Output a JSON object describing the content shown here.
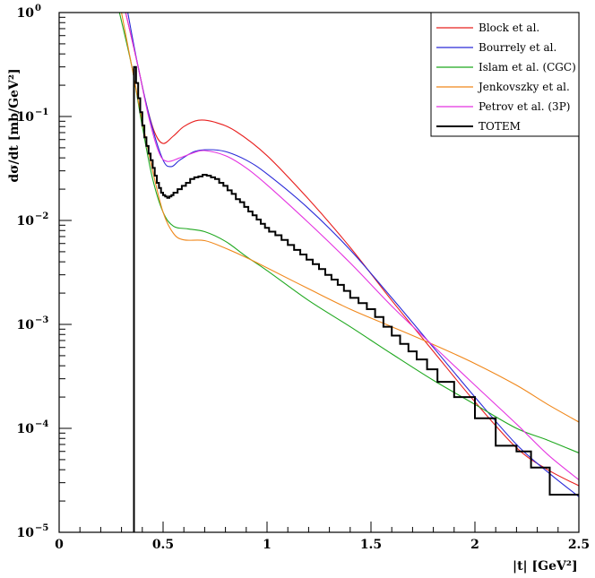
{
  "chart_data": {
    "type": "line",
    "xlabel": "|t|   [GeV²]",
    "ylabel": "dσ/dt   [mb/GeV²]",
    "xlim": [
      0,
      2.5
    ],
    "ylim": [
      1e-05,
      1
    ],
    "yscale": "log",
    "x_ticks": [
      0,
      0.5,
      1,
      1.5,
      2,
      2.5
    ],
    "x_tick_labels": [
      "0",
      "0.5",
      "1",
      "1.5",
      "2",
      "2.5"
    ],
    "y_tick_labels": [
      {
        "base": "10",
        "exp": "−5",
        "value": 1e-05
      },
      {
        "base": "10",
        "exp": "−4",
        "value": 0.0001
      },
      {
        "base": "10",
        "exp": "−3",
        "value": 0.001
      },
      {
        "base": "10",
        "exp": "−2",
        "value": 0.01
      },
      {
        "base": "10",
        "exp": "−1",
        "value": 0.1
      },
      {
        "base": "10",
        "exp": "0",
        "value": 1
      }
    ],
    "legend_position": "top-right",
    "series": [
      {
        "name": "Block et al.",
        "color": "#e8201f",
        "points": [
          [
            0.32,
            1.0
          ],
          [
            0.38,
            0.3
          ],
          [
            0.42,
            0.13
          ],
          [
            0.46,
            0.07
          ],
          [
            0.5,
            0.055
          ],
          [
            0.55,
            0.065
          ],
          [
            0.6,
            0.08
          ],
          [
            0.67,
            0.092
          ],
          [
            0.75,
            0.088
          ],
          [
            0.85,
            0.072
          ],
          [
            1.0,
            0.042
          ],
          [
            1.2,
            0.016
          ],
          [
            1.4,
            0.0055
          ],
          [
            1.6,
            0.0017
          ],
          [
            1.8,
            0.00055
          ],
          [
            2.0,
            0.00018
          ],
          [
            2.2,
            6.5e-05
          ],
          [
            2.35,
            4e-05
          ],
          [
            2.5,
            2.8e-05
          ]
        ]
      },
      {
        "name": "Bourrely et al.",
        "color": "#2a2ad8",
        "points": [
          [
            0.33,
            1.0
          ],
          [
            0.38,
            0.3
          ],
          [
            0.44,
            0.09
          ],
          [
            0.5,
            0.038
          ],
          [
            0.54,
            0.033
          ],
          [
            0.58,
            0.038
          ],
          [
            0.65,
            0.046
          ],
          [
            0.72,
            0.048
          ],
          [
            0.8,
            0.046
          ],
          [
            0.9,
            0.038
          ],
          [
            1.0,
            0.028
          ],
          [
            1.2,
            0.013
          ],
          [
            1.4,
            0.0052
          ],
          [
            1.6,
            0.0018
          ],
          [
            1.8,
            0.0006
          ],
          [
            2.0,
            0.0002
          ],
          [
            2.2,
            7e-05
          ],
          [
            2.35,
            3.8e-05
          ],
          [
            2.5,
            2.2e-05
          ]
        ]
      },
      {
        "name": "Islam et al. (CGC)",
        "color": "#1fa81f",
        "points": [
          [
            0.29,
            1.0
          ],
          [
            0.35,
            0.3
          ],
          [
            0.4,
            0.08
          ],
          [
            0.45,
            0.025
          ],
          [
            0.5,
            0.012
          ],
          [
            0.55,
            0.0088
          ],
          [
            0.62,
            0.0083
          ],
          [
            0.7,
            0.0078
          ],
          [
            0.8,
            0.0063
          ],
          [
            0.9,
            0.0045
          ],
          [
            1.0,
            0.0033
          ],
          [
            1.2,
            0.0017
          ],
          [
            1.4,
            0.00095
          ],
          [
            1.6,
            0.00052
          ],
          [
            1.8,
            0.00029
          ],
          [
            2.0,
            0.00017
          ],
          [
            2.2,
            0.0001
          ],
          [
            2.35,
            7.7e-05
          ],
          [
            2.5,
            5.8e-05
          ]
        ]
      },
      {
        "name": "Jenkovszky et al.",
        "color": "#f0871a",
        "points": [
          [
            0.3,
            1.0
          ],
          [
            0.35,
            0.3
          ],
          [
            0.4,
            0.09
          ],
          [
            0.45,
            0.03
          ],
          [
            0.5,
            0.012
          ],
          [
            0.55,
            0.0075
          ],
          [
            0.6,
            0.0065
          ],
          [
            0.7,
            0.0064
          ],
          [
            0.8,
            0.0054
          ],
          [
            0.9,
            0.0044
          ],
          [
            1.0,
            0.0035
          ],
          [
            1.2,
            0.0022
          ],
          [
            1.4,
            0.0014
          ],
          [
            1.6,
            0.00095
          ],
          [
            1.8,
            0.00064
          ],
          [
            2.0,
            0.00042
          ],
          [
            2.2,
            0.00026
          ],
          [
            2.35,
            0.00017
          ],
          [
            2.5,
            0.000115
          ]
        ]
      },
      {
        "name": "Petrov et al. (3P)",
        "color": "#e433e0",
        "points": [
          [
            0.32,
            1.0
          ],
          [
            0.38,
            0.3
          ],
          [
            0.43,
            0.1
          ],
          [
            0.48,
            0.045
          ],
          [
            0.52,
            0.037
          ],
          [
            0.58,
            0.04
          ],
          [
            0.65,
            0.045
          ],
          [
            0.7,
            0.047
          ],
          [
            0.8,
            0.042
          ],
          [
            0.9,
            0.032
          ],
          [
            1.0,
            0.022
          ],
          [
            1.2,
            0.0095
          ],
          [
            1.4,
            0.0039
          ],
          [
            1.6,
            0.0015
          ],
          [
            1.8,
            0.00062
          ],
          [
            2.0,
            0.00026
          ],
          [
            2.2,
            0.00011
          ],
          [
            2.35,
            5.6e-05
          ],
          [
            2.5,
            3.2e-05
          ]
        ]
      }
    ],
    "totem": {
      "name": "TOTEM",
      "color": "#000000",
      "vertical_at": 0.36,
      "steps": [
        [
          0.36,
          0.3
        ],
        [
          0.37,
          0.21
        ],
        [
          0.38,
          0.15
        ],
        [
          0.39,
          0.11
        ],
        [
          0.4,
          0.082
        ],
        [
          0.41,
          0.063
        ],
        [
          0.42,
          0.052
        ],
        [
          0.43,
          0.044
        ],
        [
          0.44,
          0.038
        ],
        [
          0.45,
          0.032
        ],
        [
          0.46,
          0.027
        ],
        [
          0.47,
          0.023
        ],
        [
          0.48,
          0.0205
        ],
        [
          0.49,
          0.0185
        ],
        [
          0.5,
          0.0175
        ],
        [
          0.51,
          0.017
        ],
        [
          0.52,
          0.0165
        ],
        [
          0.53,
          0.017
        ],
        [
          0.54,
          0.0175
        ],
        [
          0.55,
          0.0185
        ],
        [
          0.57,
          0.02
        ],
        [
          0.59,
          0.0215
        ],
        [
          0.61,
          0.023
        ],
        [
          0.63,
          0.025
        ],
        [
          0.65,
          0.026
        ],
        [
          0.67,
          0.0265
        ],
        [
          0.69,
          0.0275
        ],
        [
          0.71,
          0.027
        ],
        [
          0.73,
          0.026
        ],
        [
          0.75,
          0.025
        ],
        [
          0.77,
          0.023
        ],
        [
          0.79,
          0.0215
        ],
        [
          0.81,
          0.0195
        ],
        [
          0.83,
          0.018
        ],
        [
          0.85,
          0.016
        ],
        [
          0.87,
          0.015
        ],
        [
          0.89,
          0.0135
        ],
        [
          0.91,
          0.0122
        ],
        [
          0.93,
          0.0112
        ],
        [
          0.95,
          0.0102
        ],
        [
          0.97,
          0.0093
        ],
        [
          0.99,
          0.0085
        ],
        [
          1.01,
          0.0078
        ],
        [
          1.04,
          0.0072
        ],
        [
          1.07,
          0.0065
        ],
        [
          1.1,
          0.0058
        ],
        [
          1.13,
          0.0052
        ],
        [
          1.16,
          0.0047
        ],
        [
          1.19,
          0.0042
        ],
        [
          1.22,
          0.0038
        ],
        [
          1.25,
          0.0034
        ],
        [
          1.28,
          0.003
        ],
        [
          1.31,
          0.0027
        ],
        [
          1.34,
          0.0024
        ],
        [
          1.37,
          0.0021
        ],
        [
          1.4,
          0.0018
        ],
        [
          1.44,
          0.0016
        ],
        [
          1.48,
          0.0014
        ],
        [
          1.52,
          0.00118
        ],
        [
          1.56,
          0.00095
        ],
        [
          1.6,
          0.00078
        ],
        [
          1.64,
          0.00065
        ],
        [
          1.68,
          0.00055
        ],
        [
          1.72,
          0.00046
        ],
        [
          1.77,
          0.00037
        ],
        [
          1.82,
          0.00028
        ],
        [
          1.9,
          0.0002
        ],
        [
          2.0,
          0.000125
        ],
        [
          2.1,
          6.8e-05
        ],
        [
          2.2,
          6e-05
        ],
        [
          2.27,
          4.2e-05
        ],
        [
          2.36,
          2.3e-05
        ],
        [
          2.5,
          2.3e-05
        ]
      ]
    }
  }
}
